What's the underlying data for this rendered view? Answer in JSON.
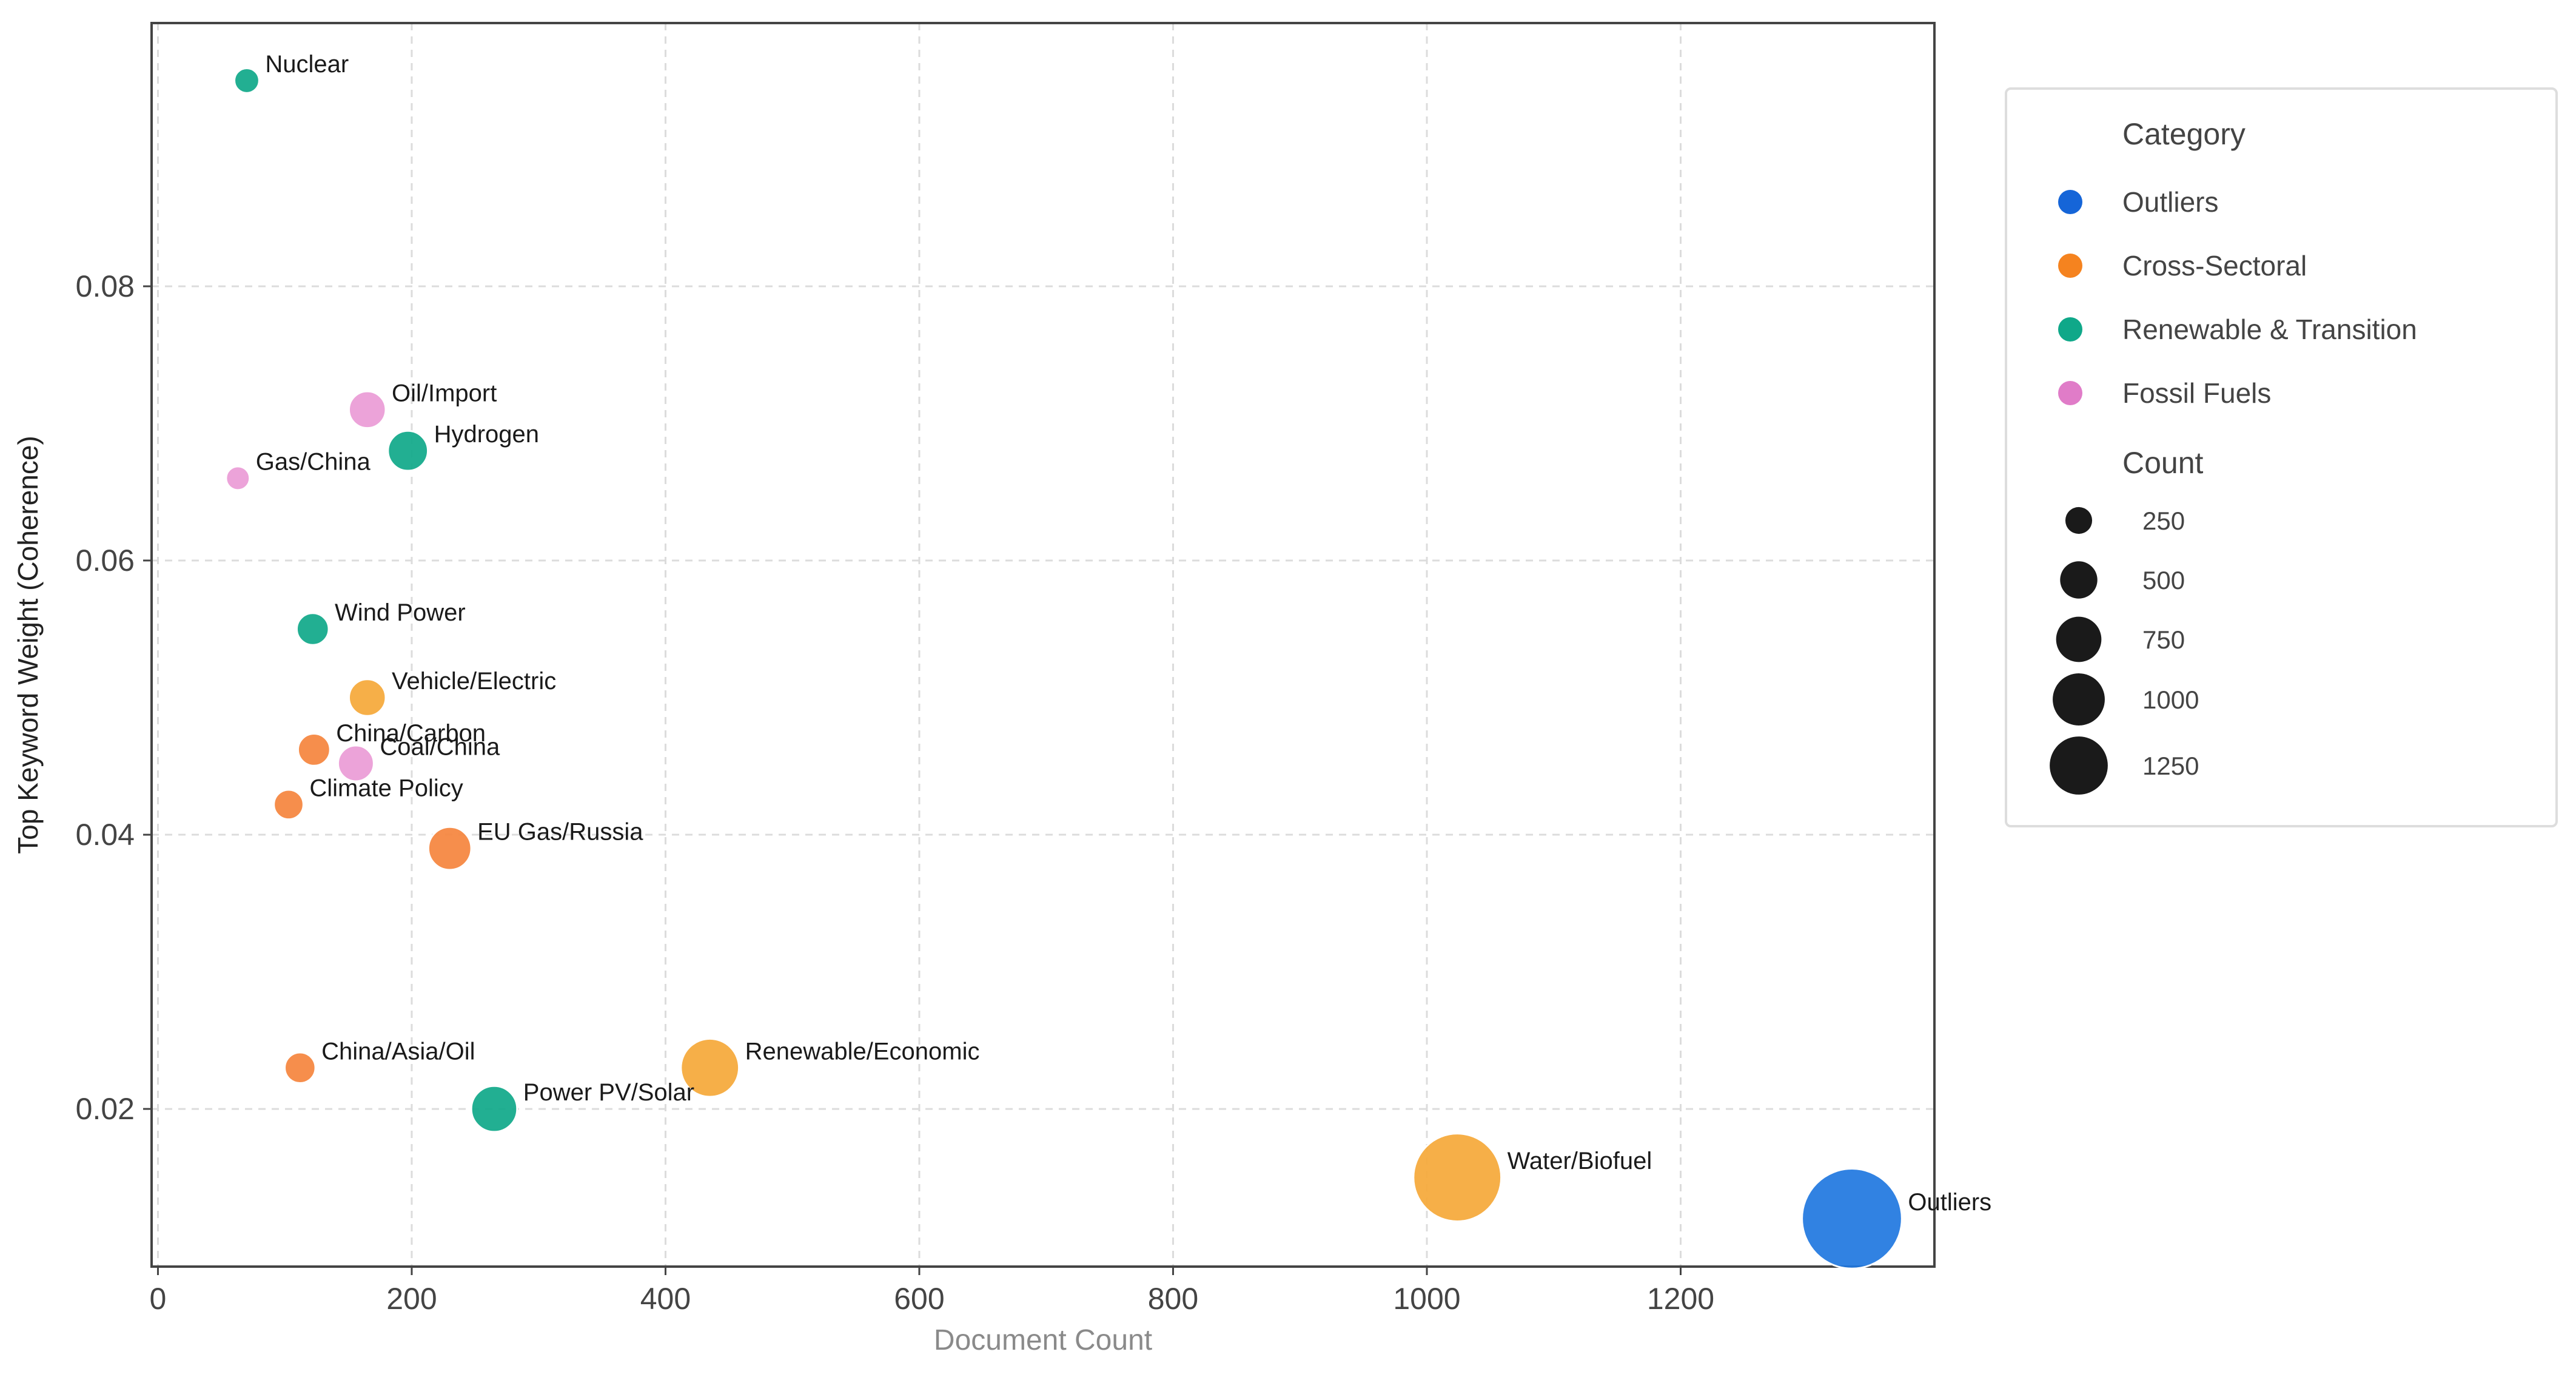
{
  "chart_data": {
    "type": "scatter",
    "title": "",
    "xlabel": "Document Count",
    "ylabel": "Top Keyword Weight (Coherence)",
    "xlim": [
      -5,
      1400
    ],
    "ylim": [
      0.0085,
      0.0992
    ],
    "x_ticks": [
      0,
      200,
      400,
      600,
      800,
      1000,
      1200
    ],
    "y_ticks": [
      0.02,
      0.04,
      0.06,
      0.08
    ],
    "x_tick_labels": [
      "0",
      "200",
      "400",
      "600",
      "800",
      "1000",
      "1200"
    ],
    "y_tick_labels": [
      "0.02",
      "0.04",
      "0.06",
      "0.08"
    ],
    "grid": true,
    "legend_placement": "right outside",
    "category_legend_title": "Category",
    "size_legend_title": "Count",
    "categories": [
      {
        "name": "Outliers",
        "color": "#1565d8"
      },
      {
        "name": "Cross-Sectoral",
        "color": "#f5831f"
      },
      {
        "name": "Renewable & Transition",
        "color": "#0fa889"
      },
      {
        "name": "Fossil Fuels",
        "color": "#e07cc8"
      }
    ],
    "size_legend": [
      {
        "label": "250",
        "value": 250
      },
      {
        "label": "500",
        "value": 500
      },
      {
        "label": "750",
        "value": 750
      },
      {
        "label": "1000",
        "value": 1000
      },
      {
        "label": "1250",
        "value": 1250
      }
    ],
    "points": [
      {
        "label": "Nuclear",
        "x": 70,
        "y": 0.095,
        "category": "Renewable & Transition",
        "color": "#0fa889"
      },
      {
        "label": "Oil/Import",
        "x": 165,
        "y": 0.071,
        "category": "Fossil Fuels",
        "color": "#ea9bd6"
      },
      {
        "label": "Hydrogen",
        "x": 197,
        "y": 0.068,
        "category": "Renewable & Transition",
        "color": "#0fa889"
      },
      {
        "label": "Gas/China",
        "x": 63,
        "y": 0.066,
        "category": "Fossil Fuels",
        "color": "#ea9bd6"
      },
      {
        "label": "Wind Power",
        "x": 122,
        "y": 0.055,
        "category": "Renewable & Transition",
        "color": "#0fa889"
      },
      {
        "label": "Vehicle/Electric",
        "x": 165,
        "y": 0.05,
        "category": "Cross-Sectoral",
        "color": "#f5a838"
      },
      {
        "label": "China/Carbon",
        "x": 123,
        "y": 0.0462,
        "category": "Cross-Sectoral",
        "color": "#f5843d"
      },
      {
        "label": "Coal/China",
        "x": 156,
        "y": 0.0452,
        "category": "Fossil Fuels",
        "color": "#ea9bd6"
      },
      {
        "label": "Climate Policy",
        "x": 103,
        "y": 0.0422,
        "category": "Cross-Sectoral",
        "color": "#f5843d"
      },
      {
        "label": "EU Gas/Russia",
        "x": 230,
        "y": 0.039,
        "category": "Cross-Sectoral",
        "color": "#f5843d"
      },
      {
        "label": "China/Asia/Oil",
        "x": 112,
        "y": 0.023,
        "category": "Cross-Sectoral",
        "color": "#f5843d"
      },
      {
        "label": "Renewable/Economic",
        "x": 435,
        "y": 0.023,
        "category": "Cross-Sectoral",
        "color": "#f5a838"
      },
      {
        "label": "Power PV/Solar",
        "x": 265,
        "y": 0.02,
        "category": "Renewable & Transition",
        "color": "#0fa889"
      },
      {
        "label": "Water/Biofuel",
        "x": 1024,
        "y": 0.015,
        "category": "Cross-Sectoral",
        "color": "#f5a838"
      },
      {
        "label": "Outliers",
        "x": 1335,
        "y": 0.012,
        "category": "Outliers",
        "color": "#1f77e0"
      }
    ]
  }
}
